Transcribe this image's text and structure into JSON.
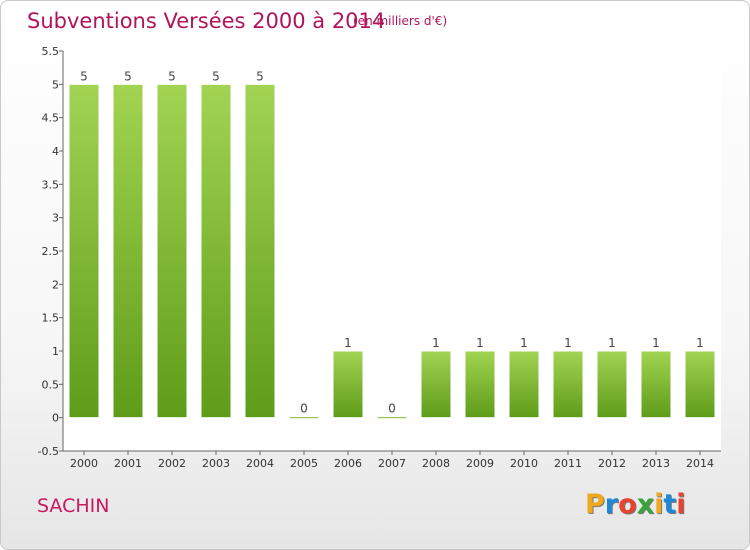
{
  "header": {
    "title": "Subventions Versées 2000 à 2014",
    "subtitle": "(en milliers d'€)"
  },
  "footer": {
    "commune": "SACHIN",
    "logo": {
      "letters": [
        "P",
        "r",
        "o",
        "x",
        "i",
        "t",
        "i"
      ],
      "colors": [
        "#f0a81c",
        "#1e88d8",
        "#e8432e",
        "#3aa33a",
        "#f0a81c",
        "#1e88d8",
        "#e8432e"
      ]
    }
  },
  "colors": {
    "bar_top": "#a2d452",
    "bar_bottom": "#5e9c1a",
    "accent": "#b0145a"
  },
  "chart_data": {
    "type": "bar",
    "categories": [
      "2000",
      "2001",
      "2002",
      "2003",
      "2004",
      "2005",
      "2006",
      "2007",
      "2008",
      "2009",
      "2010",
      "2011",
      "2012",
      "2013",
      "2014"
    ],
    "values": [
      5,
      5,
      5,
      5,
      5,
      0,
      1,
      0,
      1,
      1,
      1,
      1,
      1,
      1,
      1
    ],
    "data_labels": [
      "5",
      "5",
      "5",
      "5",
      "5",
      "0",
      "1",
      "0",
      "1",
      "1",
      "1",
      "1",
      "1",
      "1",
      "1"
    ],
    "y_ticks": [
      -0.5,
      0,
      0.5,
      1,
      1.5,
      2,
      2.5,
      3,
      3.5,
      4,
      4.5,
      5,
      5.5
    ],
    "y_tick_labels": [
      "-0.5",
      "0",
      "0.5",
      "1",
      "1.5",
      "2",
      "2.5",
      "3",
      "3.5",
      "4",
      "4.5",
      "5",
      "5.5"
    ],
    "ylim": [
      -0.5,
      5.5
    ],
    "xlabel": "",
    "ylabel": "",
    "grid": false
  }
}
